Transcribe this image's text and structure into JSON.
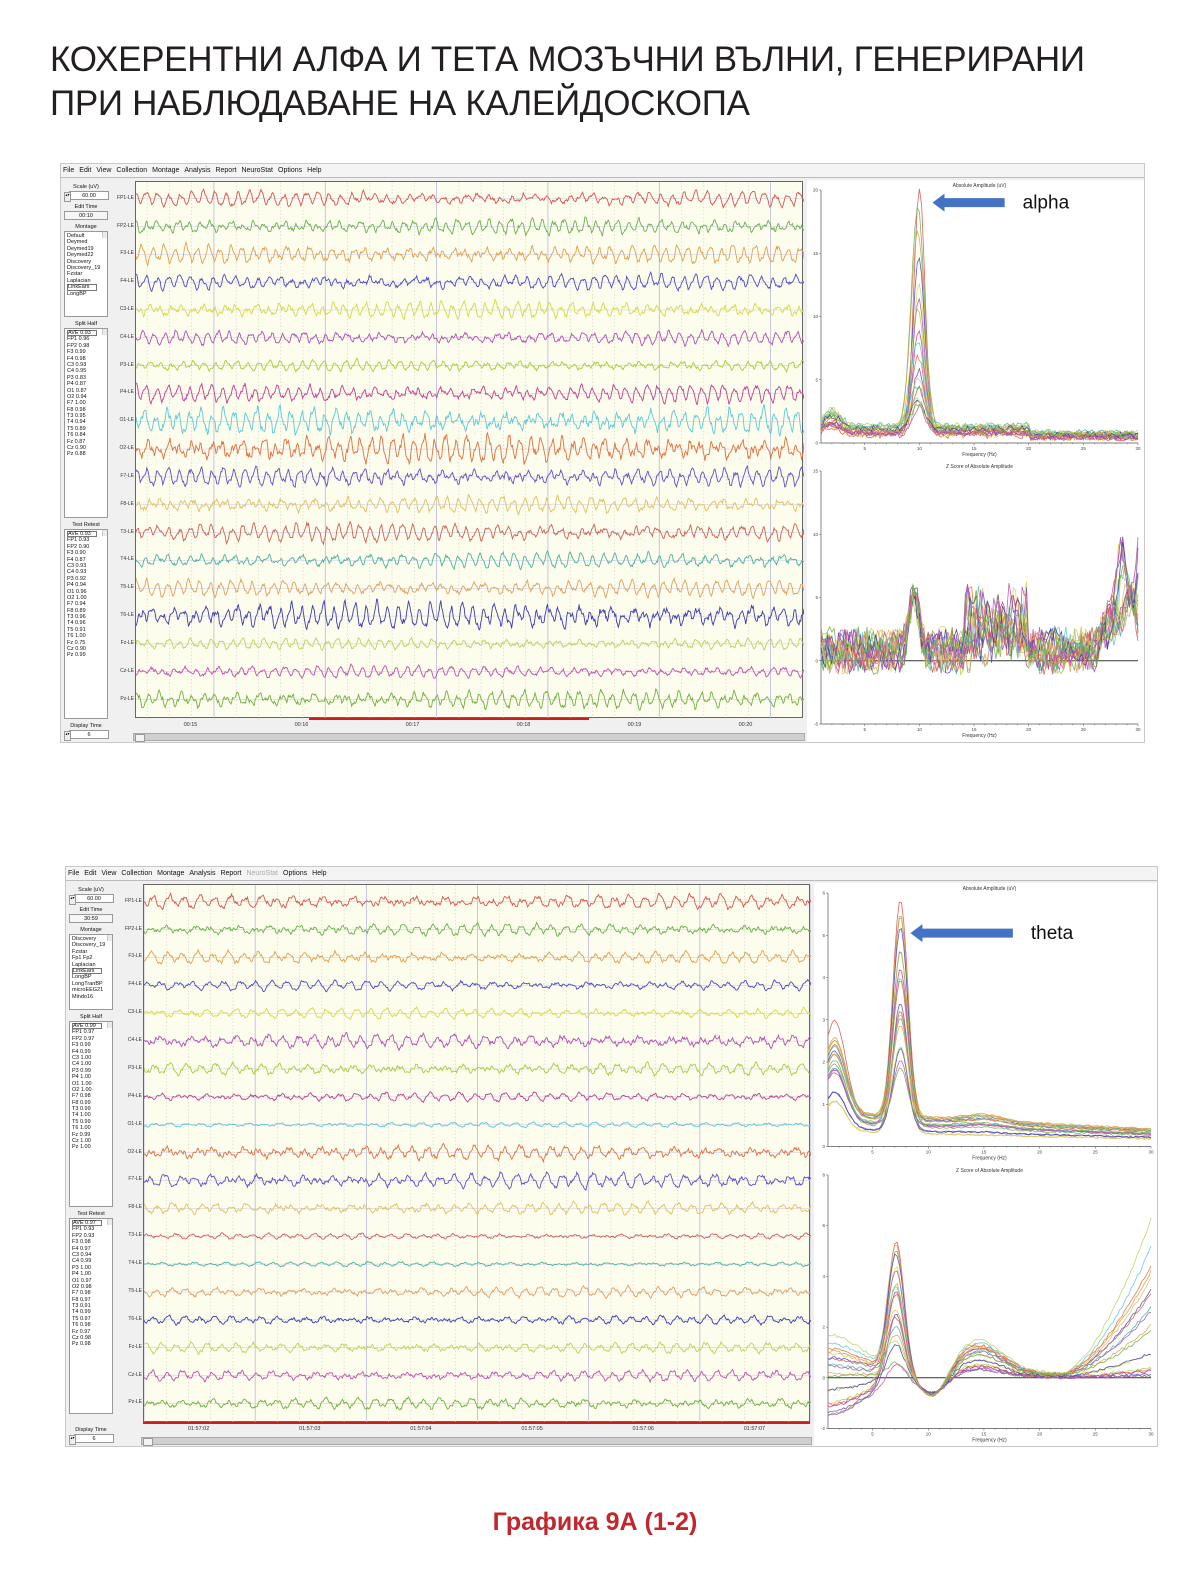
{
  "page": {
    "title_line1": "КОХЕРЕНТНИ АЛФА И ТЕТА МОЗЪЧНИ ВЪЛНИ, ГЕНЕРИРАНИ",
    "title_line2": "ПРИ НАБЛЮДАВАНЕ НА КАЛЕЙДОСКОПА",
    "caption": "Графика 9А (1-2)"
  },
  "colors": {
    "caption": "#c1272d",
    "arrow": "#4472c4",
    "plot_bg": "#fdfdee",
    "timebar": "#c8201e",
    "channels": [
      "#d9534f",
      "#6ab04c",
      "#e0a050",
      "#4c4cc0",
      "#d8d84a",
      "#b050b0",
      "#a8cc40",
      "#c04090",
      "#5cc8d4",
      "#e07040",
      "#6a4cc0",
      "#e0c060",
      "#d06050",
      "#50b0a0",
      "#e0a060",
      "#3c3cb0",
      "#c0d060",
      "#c050b0",
      "#70b040"
    ]
  },
  "channels": [
    "FP1-LE",
    "FP2-LE",
    "F3-LE",
    "F4-LE",
    "C3-LE",
    "C4-LE",
    "P3-LE",
    "P4-LE",
    "O1-LE",
    "O2-LE",
    "F7-LE",
    "F8-LE",
    "T3-LE",
    "T4-LE",
    "T5-LE",
    "T6-LE",
    "Fz-LE",
    "Cz-LE",
    "Pz-LE"
  ],
  "panels": [
    {
      "menu": [
        {
          "label": "File",
          "enabled": true
        },
        {
          "label": "Edit",
          "enabled": true
        },
        {
          "label": "View",
          "enabled": true
        },
        {
          "label": "Collection",
          "enabled": true
        },
        {
          "label": "Montage",
          "enabled": true
        },
        {
          "label": "Analysis",
          "enabled": true
        },
        {
          "label": "Report",
          "enabled": true
        },
        {
          "label": "NeuroStat",
          "enabled": true
        },
        {
          "label": "Options",
          "enabled": true
        },
        {
          "label": "Help",
          "enabled": true
        }
      ],
      "scale_label": "Scale (uV)",
      "scale_value": "60.00",
      "edit_time_label": "Edit Time",
      "edit_time_value": "00:10",
      "montage_label": "Montage",
      "montage_options": [
        "Default",
        "Deymed",
        "Deymed19",
        "Deymed22",
        "Discovery",
        "Discovery_19",
        "Fzstar",
        "Laplacian",
        "LinkEars",
        "LongBP"
      ],
      "montage_selected": "LinkEars",
      "split_half_label": "Split Half",
      "split_half": [
        "AVE 0.93",
        "FP1 0.96",
        "FP2 0.98",
        "F3 0.99",
        "F4 0.98",
        "C3 0.93",
        "C4 0.95",
        "P3 0.83",
        "P4 0.87",
        "O1 0.87",
        "O2 0.94",
        "F7 1.00",
        "F8 0.98",
        "T3 0.95",
        "T4 0.94",
        "T5 0.89",
        "T6 0.84",
        "Fz 0.87",
        "Cz 0.90",
        "Pz 0.88"
      ],
      "test_retest_label": "Test Retest",
      "test_retest": [
        "AVE 0.93",
        "FP1 0.93",
        "FP2 0.90",
        "F3 0.90",
        "F4 0.87",
        "C3 0.93",
        "C4 0.93",
        "P3 0.92",
        "P4 0.94",
        "O1 0.96",
        "O2 1.00",
        "F7 0.94",
        "F8 0.89",
        "T3 0.96",
        "T4 0.96",
        "T5 0.91",
        "T6 1.00",
        "Fz 0.75",
        "Cz 0.90",
        "Pz 0.99"
      ],
      "display_time_label": "Display Time",
      "display_time_value": "6",
      "time_labels": [
        "00:15",
        "00:16",
        "00:17",
        "00:18",
        "00:19",
        "00:20"
      ],
      "dominant_band": "alpha",
      "dominant_freq_hz": 10,
      "annotation": "alpha"
    },
    {
      "menu": [
        {
          "label": "File",
          "enabled": true
        },
        {
          "label": "Edit",
          "enabled": true
        },
        {
          "label": "View",
          "enabled": true
        },
        {
          "label": "Collection",
          "enabled": true
        },
        {
          "label": "Montage",
          "enabled": true
        },
        {
          "label": "Analysis",
          "enabled": true
        },
        {
          "label": "Report",
          "enabled": true
        },
        {
          "label": "NeuroStat",
          "enabled": false
        },
        {
          "label": "Options",
          "enabled": true
        },
        {
          "label": "Help",
          "enabled": true
        }
      ],
      "scale_label": "Scale (uV)",
      "scale_value": "60.00",
      "edit_time_label": "Edit Time",
      "edit_time_value": "30:59",
      "montage_label": "Montage",
      "montage_options": [
        "Discovery",
        "Discovery_19",
        "Fzstar",
        "Fp1 Fp2",
        "Laplacian",
        "LinkEars",
        "LongBP",
        "LongTranBP",
        "microEEG21",
        "Mindo16"
      ],
      "montage_selected": "LinkEars",
      "split_half_label": "Split Half",
      "split_half": [
        "AVE 0.99",
        "FP1 0.97",
        "FP2 0.97",
        "F3 0.99",
        "F4 0.99",
        "C3 1.00",
        "C4 1.00",
        "P3 0.99",
        "P4 1.00",
        "O1 1.00",
        "O2 1.00",
        "F7 0.98",
        "F8 0.99",
        "T3 0.99",
        "T4 1.00",
        "T5 0.99",
        "T6 1.00",
        "Fz 0.99",
        "Cz 1.00",
        "Pz 1.00"
      ],
      "test_retest_label": "Test Retest",
      "test_retest": [
        "AVE 0.97",
        "FP1 0.93",
        "FP2 0.93",
        "F3 0.98",
        "F4 0.97",
        "C3 0.94",
        "C4 0.99",
        "P3 1.00",
        "P4 1.00",
        "O1 0.97",
        "O2 0.98",
        "F7 0.98",
        "F8 0.97",
        "T3 0.91",
        "T4 0.99",
        "T5 0.97",
        "T6 0.98",
        "Fz 0.97",
        "Cz 0.98",
        "Pz 0.98"
      ],
      "display_time_label": "Display Time",
      "display_time_value": "6",
      "time_labels": [
        "01:57:02",
        "01:57:03",
        "01:57:04",
        "01:57:05",
        "01:57:06",
        "01:57:07"
      ],
      "dominant_band": "theta",
      "dominant_freq_hz": 7.5,
      "annotation": "theta"
    }
  ],
  "chart_data": [
    {
      "type": "line",
      "panel": 0,
      "title": "Absolute Amplitude (uV)",
      "xlabel": "Frequency (Hz)",
      "xlim": [
        1,
        30
      ],
      "ylim": [
        0,
        20
      ],
      "xticks": [
        5,
        10,
        15,
        20,
        25,
        30
      ],
      "yticks": [
        0,
        5,
        10,
        15,
        20
      ],
      "series_count": 19,
      "peak_x": 10,
      "peak_y_max": 19.5,
      "peak_y_min": 2,
      "baseline": 0.8,
      "annotation": "alpha"
    },
    {
      "type": "line",
      "panel": 0,
      "title": "Z Score of Absolute Amplitude",
      "xlabel": "Frequency (Hz)",
      "xlim": [
        1,
        30
      ],
      "ylim": [
        -5,
        15
      ],
      "xticks": [
        5,
        10,
        15,
        20,
        25,
        30
      ],
      "yticks": [
        -5,
        0,
        5,
        10,
        15
      ],
      "series_count": 19,
      "peak_x": 9.5,
      "peak_y_max": 6.3,
      "secondary_peaks": [
        {
          "x": 16.5,
          "y": 8
        },
        {
          "x": 29.5,
          "y": 12.5
        }
      ],
      "reference_line": 0
    },
    {
      "type": "line",
      "panel": 1,
      "title": "Absolute Amplitude (uV)",
      "xlabel": "Frequency (Hz)",
      "xlim": [
        1,
        30
      ],
      "ylim": [
        0,
        6
      ],
      "xticks": [
        5,
        10,
        15,
        20,
        25,
        30
      ],
      "yticks": [
        0,
        1,
        2,
        3,
        4,
        5,
        6
      ],
      "series_count": 19,
      "peak_x": 7.5,
      "peak_y_max": 5.2,
      "peak_y_min": 1.3,
      "low_freq_peak": {
        "x": 1.5,
        "y": 2.9
      },
      "annotation": "theta"
    },
    {
      "type": "line",
      "panel": 1,
      "title": "Z Score of Absolute Amplitude",
      "xlabel": "Frequency (Hz)",
      "xlim": [
        1,
        30
      ],
      "ylim": [
        -2,
        8
      ],
      "xticks": [
        5,
        10,
        15,
        20,
        25,
        30
      ],
      "yticks": [
        -2,
        0,
        2,
        4,
        6,
        8
      ],
      "series_count": 19,
      "peak_x": 7,
      "peak_y_max": 5.5,
      "peak_y_min": 0.5,
      "high_freq_max": {
        "x": 28.5,
        "y": 7.2
      },
      "reference_line": 0
    }
  ]
}
